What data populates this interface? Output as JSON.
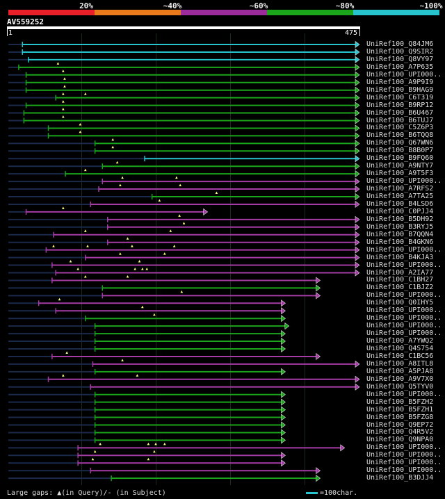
{
  "query": {
    "title": "AV559252",
    "start": "1",
    "end": "475",
    "length": 475
  },
  "identity_legend": {
    "labels": [
      "20%",
      "~40%",
      "~60%",
      "~80%",
      "~100%"
    ],
    "colors": [
      "#e8202a",
      "#e87a1c",
      "#9c2c9c",
      "#1ba51b",
      "#27c3cf"
    ]
  },
  "colors": {
    "cyan": "#27c3cf",
    "green": "#1ba51b",
    "purple": "#a53ba5",
    "dark": "#1b2a4a",
    "marker": "#ffff88"
  },
  "hits": [
    {
      "label": "UniRef100_Q84JM6",
      "color": "cyan",
      "start": 20,
      "end": 475,
      "markers": []
    },
    {
      "label": "UniRef100_Q9SIR2",
      "color": "cyan",
      "start": 20,
      "end": 475,
      "markers": []
    },
    {
      "label": "UniRef100_Q8VY97",
      "color": "cyan",
      "start": 28,
      "end": 475,
      "markers": []
    },
    {
      "label": "UniRef100_A7P635",
      "color": "green",
      "start": 15,
      "end": 475,
      "markers": [
        68
      ]
    },
    {
      "label": "UniRef100_UPI000..",
      "color": "green",
      "start": 25,
      "end": 475,
      "markers": [
        75
      ]
    },
    {
      "label": "UniRef100_A9P9I9",
      "color": "green",
      "start": 25,
      "end": 475,
      "markers": [
        77
      ]
    },
    {
      "label": "UniRef100_B9HAG9",
      "color": "green",
      "start": 25,
      "end": 475,
      "markers": [
        77
      ]
    },
    {
      "label": "UniRef100_C6T319",
      "color": "green",
      "start": 65,
      "end": 475,
      "markers": [
        75,
        105
      ]
    },
    {
      "label": "UniRef100_B9RP12",
      "color": "green",
      "start": 25,
      "end": 475,
      "markers": [
        75
      ]
    },
    {
      "label": "UniRef100_B6U467",
      "color": "green",
      "start": 22,
      "end": 475,
      "markers": [
        75
      ]
    },
    {
      "label": "UniRef100_B6TUJ7",
      "color": "green",
      "start": 22,
      "end": 475,
      "markers": [
        75
      ]
    },
    {
      "label": "UniRef100_C5Z6P3",
      "color": "green",
      "start": 55,
      "end": 475,
      "markers": [
        98
      ]
    },
    {
      "label": "UniRef100_B6TQQ8",
      "color": "green",
      "start": 55,
      "end": 475,
      "markers": [
        98
      ]
    },
    {
      "label": "UniRef100_Q67WN6",
      "color": "green",
      "start": 118,
      "end": 475,
      "markers": [
        142
      ]
    },
    {
      "label": "UniRef100_B8B0P7",
      "color": "green",
      "start": 118,
      "end": 475,
      "markers": [
        142
      ]
    },
    {
      "label": "UniRef100_B9FQ60",
      "color": "cyan",
      "start": 185,
      "end": 475,
      "markers": []
    },
    {
      "label": "UniRef100_A9NTY7",
      "color": "green",
      "start": 128,
      "end": 475,
      "markers": [
        148
      ]
    },
    {
      "label": "UniRef100_A9T5F3",
      "color": "green",
      "start": 78,
      "end": 475,
      "markers": [
        105
      ]
    },
    {
      "label": "UniRef100_UPI000..",
      "color": "purple",
      "start": 128,
      "end": 475,
      "markers": [
        155,
        228
      ]
    },
    {
      "label": "UniRef100_A7RFS2",
      "color": "purple",
      "start": 123,
      "end": 475,
      "markers": [
        152,
        233
      ]
    },
    {
      "label": "UniRef100_A7TA25",
      "color": "green",
      "start": 195,
      "end": 475,
      "markers": [
        282
      ]
    },
    {
      "label": "UniRef100_B4LSD6",
      "color": "purple",
      "start": 112,
      "end": 475,
      "markers": [
        205
      ]
    },
    {
      "label": "UniRef100_C0PJJ4",
      "color": "purple",
      "start": 25,
      "end": 270,
      "markers": [
        75
      ]
    },
    {
      "label": "UniRef100_B5DH92",
      "color": "purple",
      "start": 135,
      "end": 475,
      "markers": [
        232
      ]
    },
    {
      "label": "UniRef100_B3RYJ5",
      "color": "purple",
      "start": 135,
      "end": 475,
      "markers": [
        238
      ]
    },
    {
      "label": "UniRef100_B7QQN4",
      "color": "purple",
      "start": 62,
      "end": 475,
      "markers": [
        105,
        220
      ]
    },
    {
      "label": "UniRef100_B4GKN6",
      "color": "purple",
      "start": 135,
      "end": 475,
      "markers": [
        162
      ]
    },
    {
      "label": "UniRef100_UPI000..",
      "color": "purple",
      "start": 52,
      "end": 475,
      "markers": [
        62,
        108,
        168,
        225
      ]
    },
    {
      "label": "UniRef100_B4KJA3",
      "color": "purple",
      "start": 105,
      "end": 475,
      "markers": [
        152,
        212
      ]
    },
    {
      "label": "UniRef100_UPI000..",
      "color": "purple",
      "start": 60,
      "end": 475,
      "markers": [
        85,
        178
      ]
    },
    {
      "label": "UniRef100_A2IA77",
      "color": "purple",
      "start": 65,
      "end": 475,
      "markers": [
        95,
        172,
        182,
        188
      ]
    },
    {
      "label": "UniRef100_C1BH27",
      "color": "purple",
      "start": 60,
      "end": 422,
      "markers": [
        105,
        162
      ]
    },
    {
      "label": "UniRef100_C1BJZ2",
      "color": "green",
      "start": 128,
      "end": 422,
      "markers": []
    },
    {
      "label": "UniRef100_UPI000..",
      "color": "purple",
      "start": 128,
      "end": 422,
      "markers": [
        235
      ]
    },
    {
      "label": "UniRef100_Q0IHY5",
      "color": "purple",
      "start": 42,
      "end": 375,
      "markers": [
        70
      ]
    },
    {
      "label": "UniRef100_UPI000..",
      "color": "purple",
      "start": 65,
      "end": 375,
      "markers": [
        182
      ]
    },
    {
      "label": "UniRef100_UPI000..",
      "color": "green",
      "start": 105,
      "end": 375,
      "markers": [
        198
      ]
    },
    {
      "label": "UniRef100_UPI000..",
      "color": "green",
      "start": 118,
      "end": 380,
      "markers": []
    },
    {
      "label": "UniRef100_UPI000..",
      "color": "green",
      "start": 118,
      "end": 375,
      "markers": []
    },
    {
      "label": "UniRef100_A7YWQ2",
      "color": "green",
      "start": 118,
      "end": 375,
      "markers": []
    },
    {
      "label": "UniRef100_Q4S754",
      "color": "green",
      "start": 118,
      "end": 375,
      "markers": []
    },
    {
      "label": "UniRef100_C1BC56",
      "color": "purple",
      "start": 60,
      "end": 422,
      "markers": [
        80
      ]
    },
    {
      "label": "UniRef100_A8ITL8",
      "color": "purple",
      "start": 115,
      "end": 475,
      "markers": [
        155
      ]
    },
    {
      "label": "UniRef100_A5PJA8",
      "color": "green",
      "start": 118,
      "end": 375,
      "markers": []
    },
    {
      "label": "UniRef100_A9V7X0",
      "color": "purple",
      "start": 55,
      "end": 475,
      "markers": [
        75,
        175
      ]
    },
    {
      "label": "UniRef100_Q5TYV0",
      "color": "purple",
      "start": 112,
      "end": 475,
      "markers": []
    },
    {
      "label": "UniRef100_UPI000..",
      "color": "green",
      "start": 118,
      "end": 375,
      "markers": []
    },
    {
      "label": "UniRef100_B5FZH2",
      "color": "green",
      "start": 118,
      "end": 375,
      "markers": []
    },
    {
      "label": "UniRef100_B5FZH1",
      "color": "green",
      "start": 118,
      "end": 375,
      "markers": []
    },
    {
      "label": "UniRef100_B5FZG8",
      "color": "green",
      "start": 118,
      "end": 375,
      "markers": []
    },
    {
      "label": "UniRef100_Q9EP72",
      "color": "green",
      "start": 118,
      "end": 375,
      "markers": []
    },
    {
      "label": "UniRef100_Q4R5V2",
      "color": "green",
      "start": 118,
      "end": 375,
      "markers": []
    },
    {
      "label": "UniRef100_Q9NPA0",
      "color": "green",
      "start": 118,
      "end": 375,
      "markers": []
    },
    {
      "label": "UniRef100_UPI000..",
      "color": "purple",
      "start": 95,
      "end": 455,
      "markers": [
        125,
        190,
        200,
        212
      ]
    },
    {
      "label": "UniRef100_UPI000..",
      "color": "purple",
      "start": 95,
      "end": 375,
      "markers": [
        118,
        198
      ]
    },
    {
      "label": "UniRef100_UPI000..",
      "color": "purple",
      "start": 95,
      "end": 375,
      "markers": [
        115,
        190
      ]
    },
    {
      "label": "UniRef100_UPI000..",
      "color": "purple",
      "start": 112,
      "end": 422,
      "markers": []
    },
    {
      "label": "UniRef100_B3DJJ4",
      "color": "green",
      "start": 140,
      "end": 422,
      "markers": []
    }
  ],
  "footer": {
    "gaps_label": "Large gaps: ▲(in Query)/- (in Subject)",
    "scale_label": "=100char."
  }
}
